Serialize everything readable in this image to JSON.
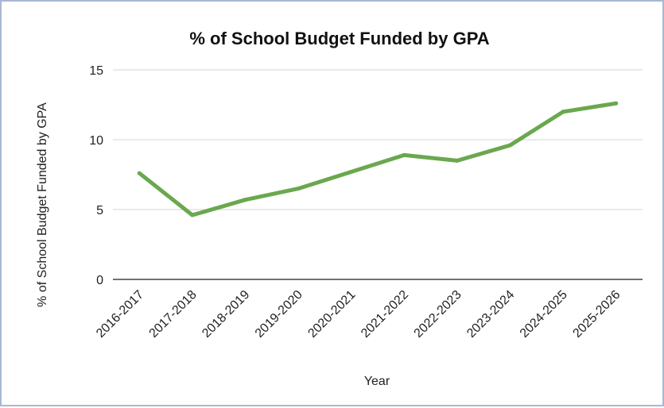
{
  "chart_data": {
    "type": "line",
    "title": "% of School Budget Funded by GPA",
    "xlabel": "Year",
    "ylabel": "% of School Budget Funded by GPA",
    "categories": [
      "2016-2017",
      "2017-2018",
      "2018-2019",
      "2019-2020",
      "2020-2021",
      "2021-2022",
      "2022-2023",
      "2023-2024",
      "2024-2025",
      "2025-2026"
    ],
    "series": [
      {
        "values": [
          7.6,
          4.6,
          5.7,
          6.5,
          7.7,
          8.9,
          8.5,
          9.6,
          12.0,
          12.6
        ],
        "color": "#6aa84f"
      }
    ],
    "yticks": [
      "0",
      "5",
      "10",
      "15"
    ],
    "ylim": [
      0,
      15
    ],
    "grid": true,
    "legend": "none"
  }
}
